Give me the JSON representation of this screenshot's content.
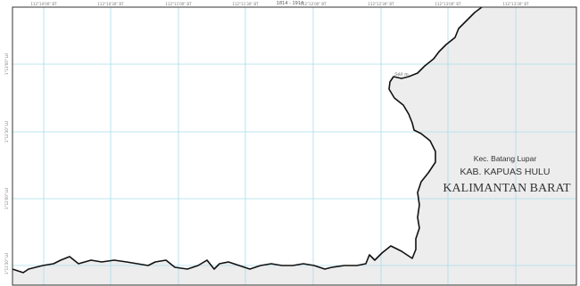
{
  "sheet_number": "1814 - 1914",
  "boundary_label": "540 m",
  "top_ticks": [
    "112°10'00\" BT",
    "112°10'30\" BT",
    "112°11'00\" BT",
    "112°11'30\" BT",
    "112°12'00\" BT",
    "112°12'30\" BT",
    "112°13'00\" BT",
    "112°13'30\" BT"
  ],
  "left_ticks": [
    "1°13'00\" LU",
    "1°12'30\" LU",
    "1°12'00\" LU",
    "1°11'30\" LU"
  ],
  "labels": {
    "district": "Kec. Batang Lupar",
    "regency": "KAB. KAPUAS HULU",
    "province": "KALIMANTAN BARAT"
  },
  "colors": {
    "background": "#ffffff",
    "neighbor_area": "#ededed",
    "grid": "#a8dcea",
    "boundary": "#111111",
    "frame": "#333333"
  }
}
